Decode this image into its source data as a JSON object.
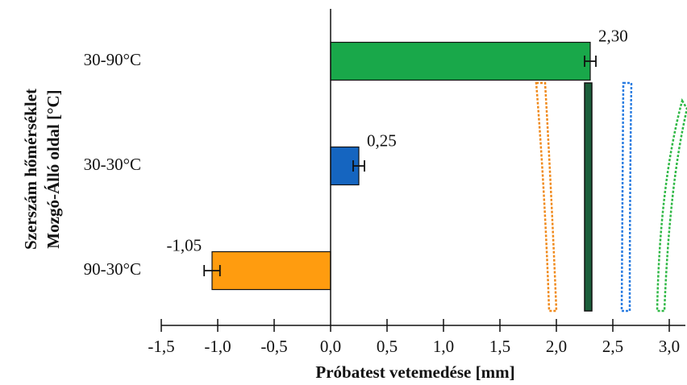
{
  "chart_data": {
    "type": "hbar",
    "y_label_lines": [
      "Szerszám hőmérséklet",
      "Mozgó-Álló oldal  [°C]"
    ],
    "x_label": "Próbatest vetemedése [mm]",
    "categories": [
      "30-90°C",
      "30-30°C",
      "90-30°C"
    ],
    "values": [
      2.3,
      0.25,
      -1.05
    ],
    "value_labels": [
      "2,30",
      "0,25",
      "-1,05"
    ],
    "errors": [
      0.05,
      0.05,
      0.07
    ],
    "colors": [
      "#19a84a",
      "#1565c0",
      "#ff9c0f"
    ],
    "xlim": [
      -1.5,
      3.0
    ],
    "xticks": [
      {
        "value": -1.5,
        "label": "-1,5"
      },
      {
        "value": -1.0,
        "label": "-1,0"
      },
      {
        "value": -0.5,
        "label": "-0,5"
      },
      {
        "value": 0.0,
        "label": "0,0"
      },
      {
        "value": 0.5,
        "label": "0,5"
      },
      {
        "value": 1.0,
        "label": "1,0"
      },
      {
        "value": 1.5,
        "label": "1,5"
      },
      {
        "value": 2.0,
        "label": "2,0"
      },
      {
        "value": 2.5,
        "label": "2,5"
      },
      {
        "value": 3.0,
        "label": "3,0"
      }
    ]
  }
}
